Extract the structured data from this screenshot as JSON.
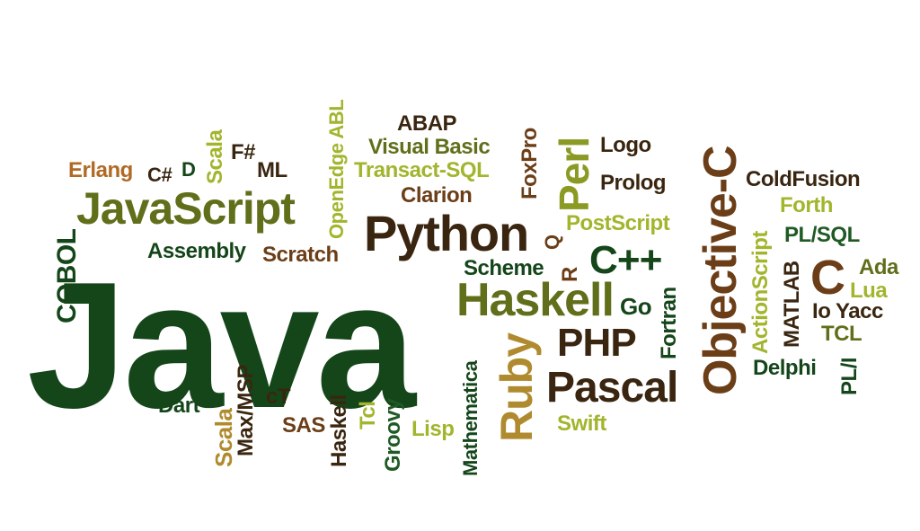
{
  "colors": {
    "dark_green": "#14461a",
    "olive": "#5f6f1a",
    "olive_light": "#8a9a22",
    "yellow_green": "#a2b52c",
    "brown_dark": "#3a2610",
    "brown": "#6b3e18",
    "orange_brown": "#b06a24",
    "gold": "#b08a2e",
    "forest": "#1f5a24"
  },
  "words": [
    {
      "text": "Java",
      "color": "dark_green"
    },
    {
      "text": "JavaScript",
      "color": "olive"
    },
    {
      "text": "Python",
      "color": "brown_dark"
    },
    {
      "text": "Objective-C",
      "color": "brown"
    },
    {
      "text": "Haskell",
      "color": "olive"
    },
    {
      "text": "Pascal",
      "color": "brown_dark"
    },
    {
      "text": "PHP",
      "color": "brown_dark"
    },
    {
      "text": "Ruby",
      "color": "gold"
    },
    {
      "text": "C++",
      "color": "dark_green"
    },
    {
      "text": "Perl",
      "color": "olive_light"
    },
    {
      "text": "C",
      "color": "brown"
    },
    {
      "text": "COBOL",
      "color": "dark_green"
    },
    {
      "text": "Erlang",
      "color": "orange_brown"
    },
    {
      "text": "C#",
      "color": "brown_dark"
    },
    {
      "text": "D",
      "color": "dark_green"
    },
    {
      "text": "Scala",
      "color": "yellow_green"
    },
    {
      "text": "F#",
      "color": "brown_dark"
    },
    {
      "text": "ML",
      "color": "brown_dark"
    },
    {
      "text": "OpenEdge ABL",
      "color": "yellow_green"
    },
    {
      "text": "ABAP",
      "color": "brown_dark"
    },
    {
      "text": "Visual Basic",
      "color": "olive"
    },
    {
      "text": "Transact-SQL",
      "color": "yellow_green"
    },
    {
      "text": "Clarion",
      "color": "brown"
    },
    {
      "text": "FoxPro",
      "color": "brown"
    },
    {
      "text": "Logo",
      "color": "brown_dark"
    },
    {
      "text": "Prolog",
      "color": "brown_dark"
    },
    {
      "text": "ColdFusion",
      "color": "brown_dark"
    },
    {
      "text": "Forth",
      "color": "yellow_green"
    },
    {
      "text": "PL/SQL",
      "color": "forest"
    },
    {
      "text": "ActionScript",
      "color": "yellow_green"
    },
    {
      "text": "MATLAB",
      "color": "brown_dark"
    },
    {
      "text": "Ada",
      "color": "olive"
    },
    {
      "text": "Lua",
      "color": "yellow_green"
    },
    {
      "text": "Io",
      "color": "brown_dark"
    },
    {
      "text": "Yacc",
      "color": "brown_dark"
    },
    {
      "text": "TCL",
      "color": "olive"
    },
    {
      "text": "Delphi",
      "color": "dark_green"
    },
    {
      "text": "PL/I",
      "color": "dark_green"
    },
    {
      "text": "Assembly",
      "color": "dark_green"
    },
    {
      "text": "Scratch",
      "color": "brown"
    },
    {
      "text": "PostScript",
      "color": "yellow_green"
    },
    {
      "text": "Q",
      "color": "brown"
    },
    {
      "text": "R",
      "color": "brown"
    },
    {
      "text": "Scheme",
      "color": "dark_green"
    },
    {
      "text": "Go",
      "color": "dark_green"
    },
    {
      "text": "Fortran",
      "color": "dark_green"
    },
    {
      "text": "Mathematica",
      "color": "dark_green"
    },
    {
      "text": "Swift",
      "color": "yellow_green"
    },
    {
      "text": "Lisp",
      "color": "yellow_green"
    },
    {
      "text": "Groovy",
      "color": "forest"
    },
    {
      "text": "Tcl",
      "color": "yellow_green"
    },
    {
      "text": "Haskell",
      "color": "brown_dark"
    },
    {
      "text": "SAS",
      "color": "brown"
    },
    {
      "text": "cT",
      "color": "brown_dark"
    },
    {
      "text": "Max/MSP",
      "color": "brown_dark"
    },
    {
      "text": "Scala",
      "color": "gold"
    },
    {
      "text": "Dart",
      "color": "dark_green"
    }
  ]
}
